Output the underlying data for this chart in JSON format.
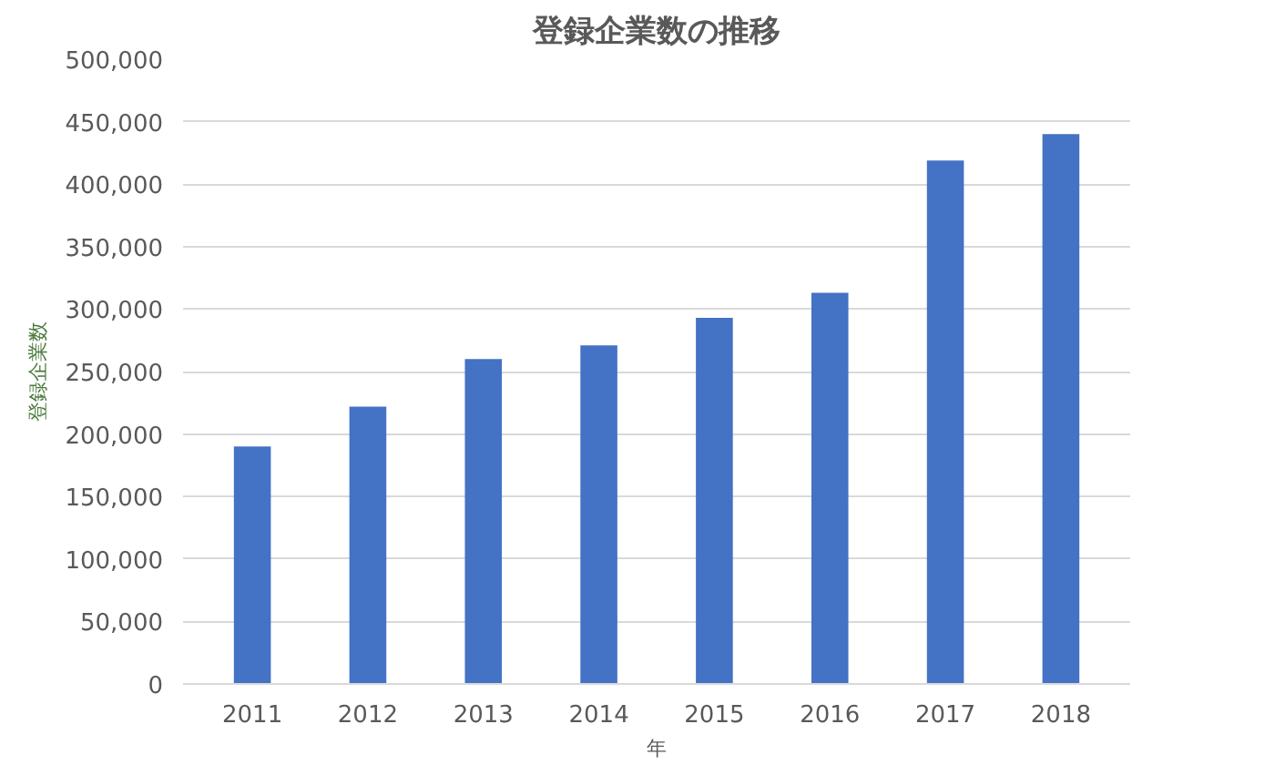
{
  "chart_data": {
    "type": "bar",
    "title": "登録企業数の推移",
    "ylabel": "登録企業数",
    "xlabel": "年",
    "categories": [
      "2011",
      "2012",
      "2013",
      "2014",
      "2015",
      "2016",
      "2017",
      "2018"
    ],
    "values": [
      190000,
      222000,
      260000,
      271000,
      293000,
      313000,
      419000,
      440000
    ],
    "color": "#4472c4",
    "ylim": [
      0,
      500000
    ],
    "yticks": [
      0,
      {
        "value": 50000,
        "label": "50,000"
      },
      {
        "value": 100000,
        "label": "100,000"
      },
      {
        "value": 150000,
        "label": "150,000"
      },
      {
        "value": 200000,
        "label": "200,000"
      },
      {
        "value": 250000,
        "label": "250,000"
      },
      {
        "value": 300000,
        "label": "300,000"
      },
      {
        "value": 350000,
        "label": "350,000"
      },
      {
        "value": 400000,
        "label": "400,000"
      },
      {
        "value": 450000,
        "label": "450,000"
      },
      {
        "value": 500000,
        "label": "500,000"
      }
    ],
    "grid": "y"
  }
}
